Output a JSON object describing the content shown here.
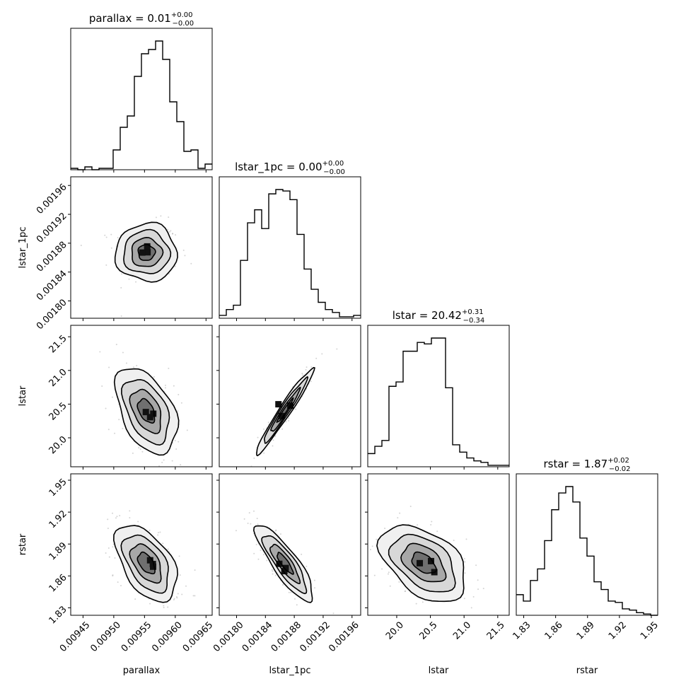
{
  "chart_data": {
    "type": "corner",
    "parameters": [
      {
        "name": "parallax",
        "label": "parallax",
        "title_main": "parallax = 0.01",
        "title_plus": "+0.00",
        "title_minus": "−0.00",
        "range": [
          0.00943,
          0.00966
        ],
        "ticks": [
          "0.00945",
          "0.00950",
          "0.00955",
          "0.00960",
          "0.00965"
        ],
        "tick_values": [
          0.00945,
          0.0095,
          0.00955,
          0.0096,
          0.00965
        ],
        "hist": [
          1,
          0,
          2,
          0,
          1,
          1,
          14,
          30,
          38,
          66,
          82,
          85,
          91,
          78,
          48,
          34,
          13,
          14,
          1,
          4
        ]
      },
      {
        "name": "lstar_1pc",
        "label": "lstar_1pc",
        "title_main": "lstar_1pc = 0.00",
        "title_plus": "+0.00",
        "title_minus": "−0.00",
        "range": [
          0.001776,
          0.001972
        ],
        "ticks": [
          "0.00180",
          "0.00184",
          "0.00188",
          "0.00192",
          "0.00196"
        ],
        "tick_values": [
          0.0018,
          0.00184,
          0.00188,
          0.00192,
          0.00196
        ],
        "hist": [
          2,
          6,
          9,
          40,
          66,
          75,
          62,
          86,
          89,
          88,
          82,
          58,
          34,
          20,
          11,
          6,
          4,
          1,
          1,
          2
        ]
      },
      {
        "name": "lstar",
        "label": "lstar",
        "title_main": "lstar = 20.42",
        "title_plus": "+0.31",
        "title_minus": "−0.34",
        "range": [
          19.57,
          21.67
        ],
        "ticks": [
          "20.0",
          "20.5",
          "21.0",
          "21.5"
        ],
        "tick_values": [
          20.0,
          20.5,
          21.0,
          21.5
        ],
        "hist": [
          9,
          14,
          18,
          55,
          58,
          79,
          79,
          85,
          84,
          88,
          88,
          54,
          15,
          10,
          6,
          4,
          3,
          1,
          1,
          1
        ]
      },
      {
        "name": "rstar",
        "label": "rstar",
        "title_main": "rstar = 1.87",
        "title_plus": "+0.02",
        "title_minus": "−0.02",
        "range": [
          1.823,
          1.956
        ],
        "ticks": [
          "1.83",
          "1.86",
          "1.89",
          "1.92",
          "1.95"
        ],
        "tick_values": [
          1.83,
          1.86,
          1.89,
          1.92,
          1.95
        ],
        "hist": [
          16,
          11,
          27,
          36,
          58,
          82,
          95,
          100,
          88,
          60,
          46,
          26,
          20,
          11,
          10,
          5,
          4,
          2,
          1,
          0
        ]
      }
    ],
    "pairs": [
      {
        "x": "parallax",
        "y": "lstar_1pc",
        "mean": [
          0.009553,
          0.001867
        ],
        "sd": [
          2.5e-05,
          2e-05
        ],
        "corr": 0.0
      },
      {
        "x": "parallax",
        "y": "lstar",
        "mean": [
          0.009553,
          20.4
        ],
        "sd": [
          2.5e-05,
          0.32
        ],
        "corr": -0.45
      },
      {
        "x": "parallax",
        "y": "rstar",
        "mean": [
          0.009553,
          1.872
        ],
        "sd": [
          2.5e-05,
          0.018
        ],
        "corr": -0.5
      },
      {
        "x": "lstar_1pc",
        "y": "lstar",
        "mean": [
          0.001867,
          20.4
        ],
        "sd": [
          2e-05,
          0.32
        ],
        "corr": 0.97
      },
      {
        "x": "lstar_1pc",
        "y": "rstar",
        "mean": [
          0.001867,
          1.872
        ],
        "sd": [
          2e-05,
          0.018
        ],
        "corr": -0.85
      },
      {
        "x": "lstar",
        "y": "rstar",
        "mean": [
          20.4,
          1.872
        ],
        "sd": [
          0.32,
          0.018
        ],
        "corr": -0.45
      }
    ],
    "colors": {
      "density": "#000000",
      "axes": "#000000",
      "background": "#ffffff"
    }
  }
}
